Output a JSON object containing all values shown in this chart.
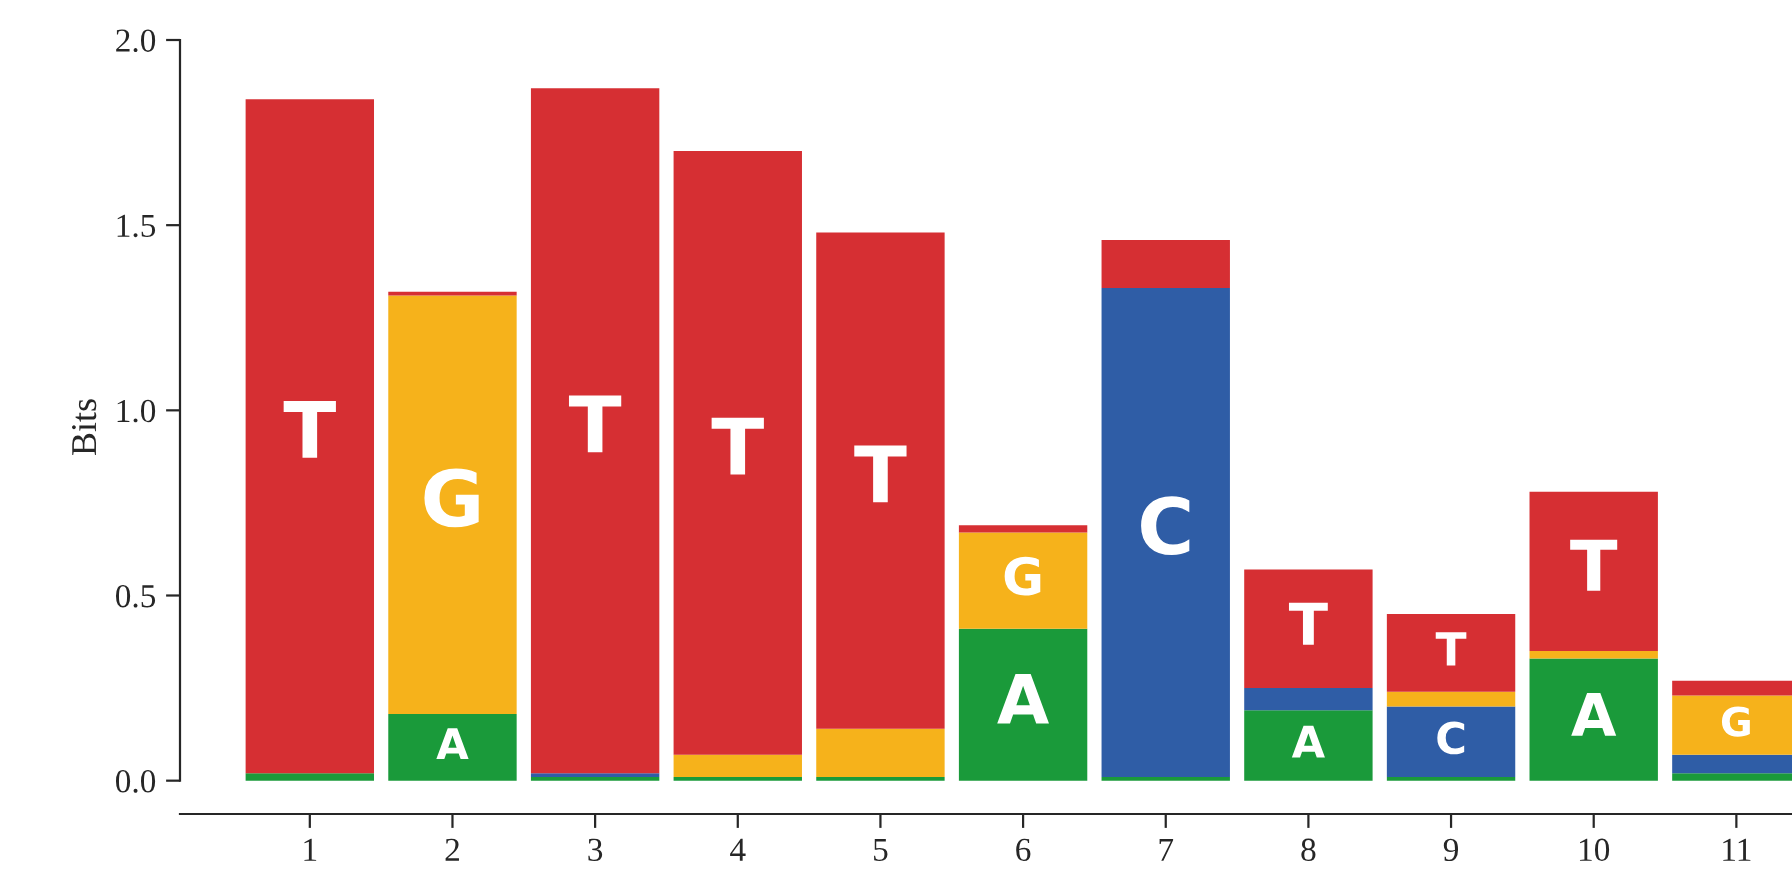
{
  "chart_data": {
    "type": "bar",
    "stacked": true,
    "ylabel": "Bits",
    "categories": [
      "1",
      "2",
      "3",
      "4",
      "5",
      "6",
      "7",
      "8",
      "9",
      "10",
      "11"
    ],
    "series": [
      {
        "name": "A",
        "color": "#1a9a3a",
        "values": [
          0.02,
          0.18,
          0.01,
          0.01,
          0.01,
          0.41,
          0.01,
          0.19,
          0.01,
          0.33,
          0.02
        ]
      },
      {
        "name": "C",
        "color": "#2f5da6",
        "values": [
          0,
          0,
          0.01,
          0,
          0,
          0,
          1.32,
          0.06,
          0.19,
          0,
          0.05
        ]
      },
      {
        "name": "G",
        "color": "#f6b21b",
        "values": [
          0,
          1.13,
          0,
          0.06,
          0.13,
          0.26,
          0,
          0,
          0.04,
          0.02,
          0.16
        ]
      },
      {
        "name": "T",
        "color": "#d62f33",
        "values": [
          1.82,
          0.01,
          1.85,
          1.63,
          1.34,
          0.02,
          0.13,
          0.32,
          0.21,
          0.43,
          0.04
        ]
      }
    ],
    "ylim": [
      -0.09,
      2.0
    ],
    "yticks": [
      {
        "value": 0,
        "label": "0.0"
      },
      {
        "value": 0.5,
        "label": "0.5"
      },
      {
        "value": 1,
        "label": "1.0"
      },
      {
        "value": 1.5,
        "label": "1.5"
      },
      {
        "value": 2,
        "label": "2.0"
      }
    ],
    "grid": false,
    "legend": false
  }
}
